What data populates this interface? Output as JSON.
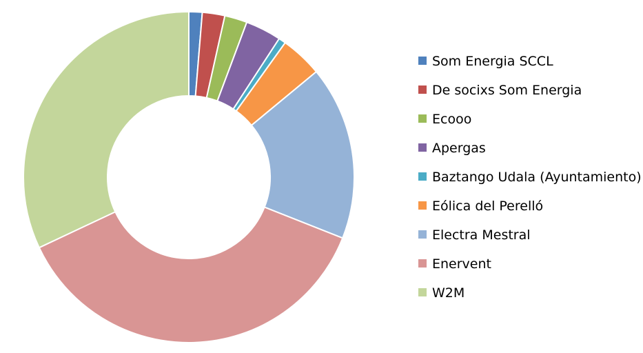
{
  "chart_data": {
    "type": "pie",
    "variant": "donut",
    "title": "",
    "legend_position": "right",
    "series": [
      {
        "name": "Som Energia SCCL",
        "value": 1.3,
        "color": "#4F81BD"
      },
      {
        "name": "De socixs Som Energia",
        "value": 2.2,
        "color": "#C0504D"
      },
      {
        "name": "Ecooo",
        "value": 2.2,
        "color": "#9BBB59"
      },
      {
        "name": "Apergas",
        "value": 3.5,
        "color": "#8064A2"
      },
      {
        "name": "Baztango Udala (Ayuntamiento)",
        "value": 0.7,
        "color": "#4BACC6"
      },
      {
        "name": "Eólica del Perelló",
        "value": 4.1,
        "color": "#F79646"
      },
      {
        "name": "Electra Mestral",
        "value": 17.0,
        "color": "#95B3D7"
      },
      {
        "name": "Enervent",
        "value": 37.0,
        "color": "#D99594"
      },
      {
        "name": "W2M",
        "value": 32.0,
        "color": "#C3D69B"
      }
    ]
  }
}
